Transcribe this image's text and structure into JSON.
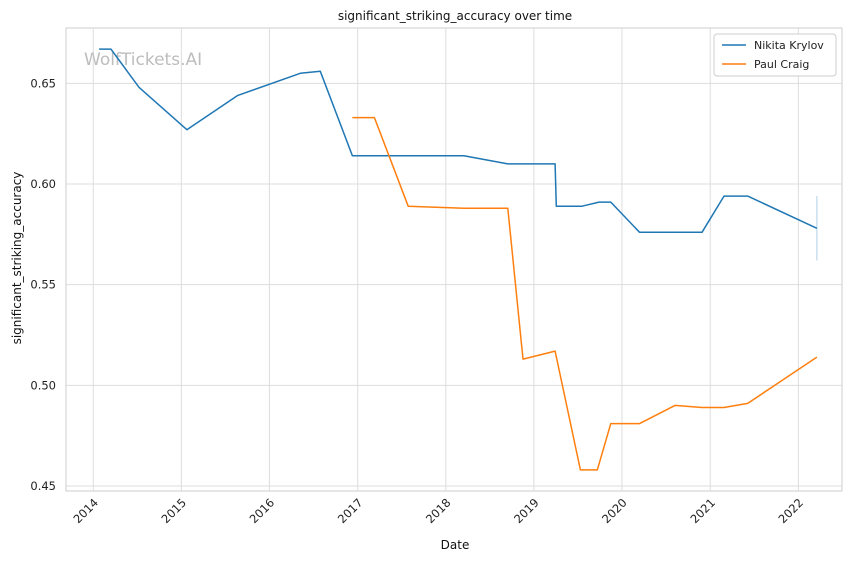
{
  "watermark": "WolfTickets.AI",
  "chart_data": {
    "type": "line",
    "title": "significant_striking_accuracy over time",
    "xlabel": "Date",
    "ylabel": "significant_striking_accuracy",
    "x_ticks": [
      "2014",
      "2015",
      "2016",
      "2017",
      "2018",
      "2019",
      "2020",
      "2021",
      "2022"
    ],
    "y_ticks": [
      "0.45",
      "0.50",
      "0.55",
      "0.60",
      "0.65"
    ],
    "xlim": [
      "2013-09-10",
      "2022-07-01"
    ],
    "ylim": [
      0.4475,
      0.6775
    ],
    "grid": true,
    "legend_position": "top-right",
    "series": [
      {
        "name": "Nikita Krylov",
        "color": "#1f77b4",
        "points": [
          {
            "x": "2014-01-25",
            "y": 0.667
          },
          {
            "x": "2014-03-15",
            "y": 0.667
          },
          {
            "x": "2014-07-10",
            "y": 0.648
          },
          {
            "x": "2015-01-24",
            "y": 0.627
          },
          {
            "x": "2015-08-23",
            "y": 0.644
          },
          {
            "x": "2016-05-08",
            "y": 0.655
          },
          {
            "x": "2016-07-30",
            "y": 0.656
          },
          {
            "x": "2016-12-10",
            "y": 0.614
          },
          {
            "x": "2018-03-17",
            "y": 0.614
          },
          {
            "x": "2018-09-15",
            "y": 0.61
          },
          {
            "x": "2019-03-30",
            "y": 0.61
          },
          {
            "x": "2019-04-04",
            "y": 0.589
          },
          {
            "x": "2019-07-20",
            "y": 0.589
          },
          {
            "x": "2019-09-28",
            "y": 0.591
          },
          {
            "x": "2019-11-16",
            "y": 0.591
          },
          {
            "x": "2020-03-14",
            "y": 0.576
          },
          {
            "x": "2020-11-28",
            "y": 0.576
          },
          {
            "x": "2021-02-27",
            "y": 0.594
          },
          {
            "x": "2021-06-05",
            "y": 0.594
          },
          {
            "x": "2022-03-19",
            "y": 0.578
          }
        ]
      },
      {
        "name": "Paul Craig",
        "color": "#ff7f0e",
        "points": [
          {
            "x": "2016-12-10",
            "y": 0.633
          },
          {
            "x": "2017-03-11",
            "y": 0.633
          },
          {
            "x": "2017-07-29",
            "y": 0.589
          },
          {
            "x": "2018-03-17",
            "y": 0.588
          },
          {
            "x": "2018-09-15",
            "y": 0.588
          },
          {
            "x": "2018-11-17",
            "y": 0.513
          },
          {
            "x": "2019-03-30",
            "y": 0.517
          },
          {
            "x": "2019-07-13",
            "y": 0.458
          },
          {
            "x": "2019-09-21",
            "y": 0.458
          },
          {
            "x": "2019-11-16",
            "y": 0.481
          },
          {
            "x": "2020-03-14",
            "y": 0.481
          },
          {
            "x": "2020-08-08",
            "y": 0.49
          },
          {
            "x": "2020-11-28",
            "y": 0.489
          },
          {
            "x": "2021-02-27",
            "y": 0.489
          },
          {
            "x": "2021-06-05",
            "y": 0.491
          },
          {
            "x": "2022-03-19",
            "y": 0.514
          }
        ]
      }
    ],
    "error_bar": {
      "x": "2022-03-19",
      "y_low": 0.562,
      "y_high": 0.594,
      "color": "#1f77b4"
    }
  }
}
